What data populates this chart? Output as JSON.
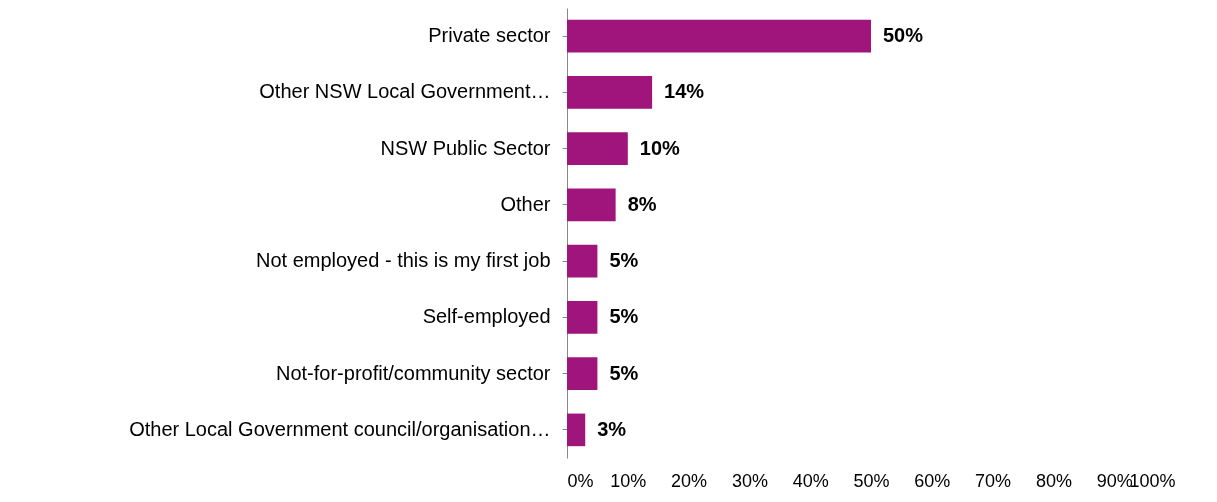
{
  "chart_data": {
    "type": "bar",
    "orientation": "horizontal",
    "categories": [
      "Private sector",
      "Other NSW Local Government…",
      "NSW Public Sector",
      "Other",
      "Not employed - this is my first job",
      "Self-employed",
      "Not-for-profit/community sector",
      "Other Local Government council/organisation…"
    ],
    "values": [
      50,
      14,
      10,
      8,
      5,
      5,
      5,
      3
    ],
    "value_labels": [
      "50%",
      "14%",
      "10%",
      "8%",
      "5%",
      "5%",
      "5%",
      "3%"
    ],
    "color": "#a0157c",
    "xlim": [
      0,
      100
    ],
    "xticks": [
      {
        "value": 0,
        "label": "0%"
      },
      {
        "value": 10,
        "label": "10%"
      },
      {
        "value": 20,
        "label": "20%"
      },
      {
        "value": 30,
        "label": "30%"
      },
      {
        "value": 40,
        "label": "40%"
      },
      {
        "value": 50,
        "label": "50%"
      },
      {
        "value": 60,
        "label": "60%"
      },
      {
        "value": 70,
        "label": "70%"
      },
      {
        "value": 80,
        "label": "80%"
      },
      {
        "value": 90,
        "label": "90%"
      },
      {
        "value": 100,
        "label": "100%"
      }
    ],
    "grid": false
  }
}
